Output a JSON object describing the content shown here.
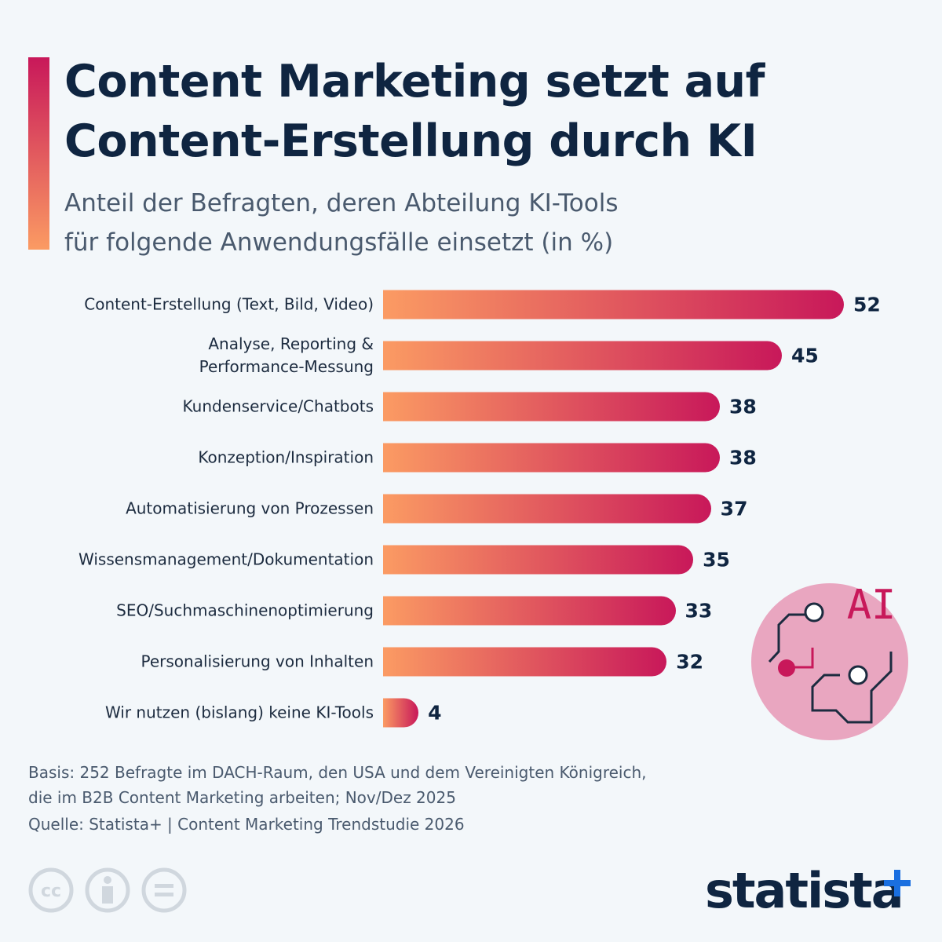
{
  "chart_data": {
    "type": "bar",
    "title": "Content Marketing setzt auf\nContent-Erstellung durch KI",
    "subtitle": "Anteil der Befragten, deren Abteilung KI-Tools\nfür folgende Anwendungsfälle einsetzt (in %)",
    "categories": [
      "Content-Erstellung (Text, Bild, Video)",
      "Analyse, Reporting &\nPerformance-Messung",
      "Kundenservice/Chatbots",
      "Konzeption/Inspiration",
      "Automatisierung von Prozessen",
      "Wissensmanagement/Dokumentation",
      "SEO/Suchmaschinenoptimierung",
      "Personalisierung von Inhalten",
      "Wir nutzen (bislang) keine KI-Tools"
    ],
    "values": [
      52,
      45,
      38,
      38,
      37,
      35,
      33,
      32,
      4
    ],
    "colors": [
      "#fb9b63",
      "#c8185a"
    ],
    "note": "Basis: 252 Befragte im DACH-Raum, den USA und dem Vereinigten Königreich,\ndie im B2B Content Marketing arbeiten; Nov/Dez 2025",
    "source": "Quelle: Statista+ | Content Marketing Trendstudie 2026",
    "icon_text": "AI",
    "license_text": "cc",
    "brand": "statista"
  }
}
